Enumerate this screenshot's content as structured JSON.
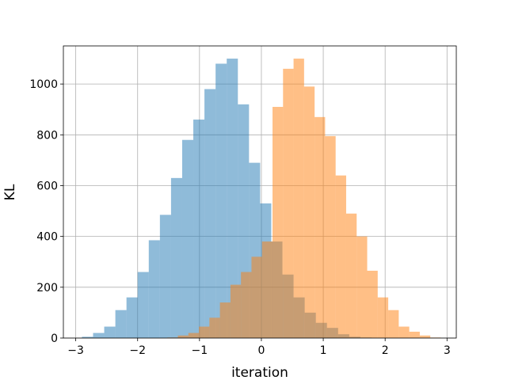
{
  "chart_data": {
    "type": "bar",
    "title": "",
    "xlabel": "iteration",
    "ylabel": "KL",
    "xlim": [
      -3.2,
      3.15
    ],
    "ylim": [
      0,
      1150
    ],
    "xticks": [
      -3,
      -2,
      -1,
      0,
      1,
      2,
      3
    ],
    "xtick_labels": [
      "−3",
      "−2",
      "−1",
      "0",
      "1",
      "2",
      "3"
    ],
    "yticks": [
      0,
      200,
      400,
      600,
      800,
      1000
    ],
    "ytick_labels": [
      "0",
      "200",
      "400",
      "600",
      "800",
      "1000"
    ],
    "grid": true,
    "series": [
      {
        "color": "#1f77b4",
        "opacity": 0.5,
        "bin_edges": [
          -2.9,
          -2.72,
          -2.54,
          -2.36,
          -2.18,
          -2.0,
          -1.82,
          -1.64,
          -1.46,
          -1.28,
          -1.1,
          -0.92,
          -0.74,
          -0.56,
          -0.38,
          -0.2,
          -0.02,
          0.16,
          0.34,
          0.52,
          0.7,
          0.88,
          1.06,
          1.24,
          1.42,
          1.6,
          1.78
        ],
        "counts": [
          5,
          20,
          45,
          110,
          160,
          260,
          385,
          485,
          630,
          780,
          860,
          980,
          1080,
          1100,
          920,
          690,
          530,
          380,
          250,
          160,
          100,
          60,
          40,
          15,
          5,
          2
        ]
      },
      {
        "color": "#ff7f0e",
        "opacity": 0.5,
        "bin_edges": [
          -1.52,
          -1.35,
          -1.18,
          -1.01,
          -0.84,
          -0.67,
          -0.5,
          -0.33,
          -0.16,
          0.01,
          0.18,
          0.35,
          0.52,
          0.69,
          0.86,
          1.03,
          1.2,
          1.37,
          1.54,
          1.71,
          1.88,
          2.05,
          2.22,
          2.39,
          2.56,
          2.73,
          2.9
        ],
        "counts": [
          2,
          10,
          20,
          45,
          80,
          140,
          210,
          260,
          320,
          380,
          910,
          1060,
          1100,
          990,
          870,
          795,
          640,
          490,
          400,
          265,
          160,
          110,
          45,
          25,
          10,
          2
        ]
      }
    ]
  }
}
